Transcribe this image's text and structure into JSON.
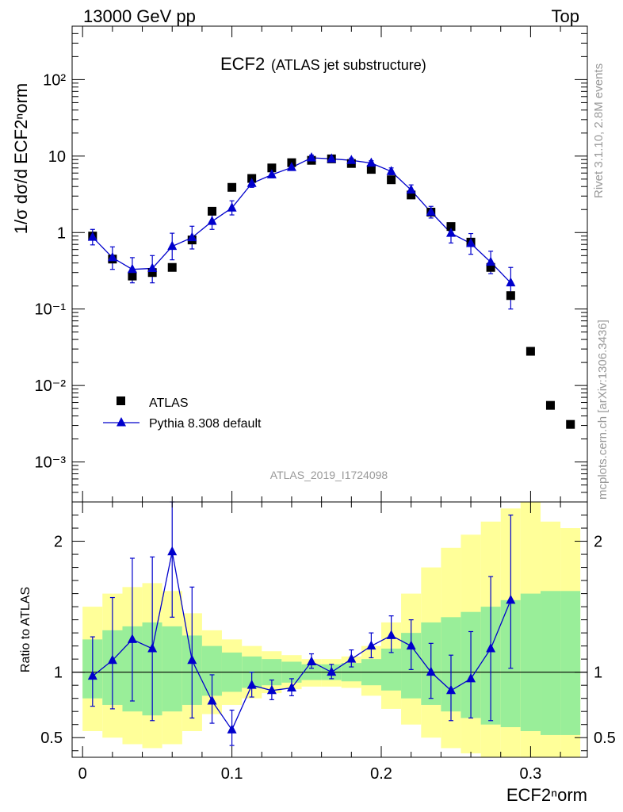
{
  "header": {
    "left": "13000 GeV pp",
    "right": "Top"
  },
  "annotations": {
    "title_main": "ECF2",
    "title_sub": "(ATLAS jet substructure)",
    "analysis_id": "ATLAS_2019_I1724098",
    "rivet": "Rivet 3.1.10,  2.8M events",
    "site": "mcplots.cern.ch [arXiv:1306.3436]"
  },
  "colors": {
    "data": "#000000",
    "mc": "#0000cc",
    "band_1sigma": "#99ee99",
    "band_2sigma": "#ffff99",
    "text_grey": "#999999"
  },
  "chart_data": [
    {
      "type": "scatter",
      "yscale": "log",
      "xlim": [
        -0.007,
        0.338
      ],
      "ylim": [
        0.0003,
        500
      ],
      "ylabel": "1/σ dσ/d ECF2ⁿorm",
      "y_ticks": [
        "10⁻³",
        "10⁻²",
        "10⁻¹",
        "1",
        "10",
        "10²"
      ],
      "legend_position": "lower-left",
      "series": [
        {
          "name": "ATLAS",
          "x": [
            0.0067,
            0.02,
            0.0333,
            0.0467,
            0.06,
            0.0733,
            0.0867,
            0.1,
            0.1133,
            0.1267,
            0.14,
            0.1533,
            0.1667,
            0.18,
            0.1933,
            0.2067,
            0.22,
            0.2333,
            0.2467,
            0.26,
            0.2733,
            0.2867,
            0.3,
            0.3133,
            0.3267
          ],
          "y": [
            0.9,
            0.45,
            0.27,
            0.3,
            0.35,
            0.8,
            1.9,
            3.9,
            5.1,
            7.0,
            8.2,
            8.8,
            9.2,
            8.0,
            6.7,
            4.9,
            3.1,
            1.85,
            1.2,
            0.75,
            0.35,
            0.15,
            0.028,
            0.0055,
            0.0031
          ]
        },
        {
          "name": "Pythia 8.308 default",
          "x": [
            0.0067,
            0.02,
            0.0333,
            0.0467,
            0.06,
            0.0733,
            0.0867,
            0.1,
            0.1133,
            0.1267,
            0.14,
            0.1533,
            0.1667,
            0.18,
            0.1933,
            0.2067,
            0.22,
            0.2333,
            0.2467,
            0.26,
            0.2733,
            0.2867
          ],
          "y": [
            0.87,
            0.47,
            0.33,
            0.34,
            0.66,
            0.86,
            1.4,
            2.1,
            4.4,
            5.7,
            7.1,
            9.5,
            9.2,
            8.8,
            8.1,
            6.3,
            3.6,
            1.85,
            0.98,
            0.72,
            0.41,
            0.22
          ],
          "yerr_low": [
            0.18,
            0.14,
            0.11,
            0.12,
            0.22,
            0.25,
            0.3,
            0.4,
            0.5,
            0.5,
            0.6,
            0.7,
            0.6,
            0.5,
            0.5,
            0.6,
            0.5,
            0.3,
            0.25,
            0.2,
            0.12,
            0.12
          ],
          "yerr_high": [
            0.23,
            0.18,
            0.14,
            0.16,
            0.32,
            0.35,
            0.4,
            0.5,
            0.6,
            0.6,
            0.7,
            0.8,
            0.7,
            0.6,
            0.6,
            0.7,
            0.6,
            0.35,
            0.3,
            0.25,
            0.16,
            0.13
          ]
        }
      ]
    },
    {
      "type": "line",
      "xlim": [
        -0.007,
        0.338
      ],
      "ylim": [
        0.35,
        2.3
      ],
      "xlabel": "ECF2ⁿorm",
      "ylabel": "Ratio to ATLAS",
      "x_ticks": [
        "0",
        "0.1",
        "0.2",
        "0.3"
      ],
      "y_ticks": [
        "0.5",
        "1",
        "2"
      ],
      "bin_edges": [
        0,
        0.0133,
        0.0267,
        0.04,
        0.0533,
        0.0667,
        0.08,
        0.0933,
        0.1067,
        0.12,
        0.1333,
        0.1467,
        0.16,
        0.1733,
        0.1867,
        0.2,
        0.2133,
        0.2267,
        0.24,
        0.2533,
        0.2667,
        0.28,
        0.2933,
        0.3067,
        0.32,
        0.3333
      ],
      "band_1sigma": {
        "low": [
          0.8,
          0.75,
          0.7,
          0.67,
          0.7,
          0.75,
          0.82,
          0.85,
          0.88,
          0.9,
          0.92,
          0.94,
          0.94,
          0.93,
          0.9,
          0.86,
          0.8,
          0.75,
          0.7,
          0.65,
          0.6,
          0.58,
          0.55,
          0.52,
          0.52
        ],
        "high": [
          1.25,
          1.32,
          1.35,
          1.38,
          1.35,
          1.28,
          1.2,
          1.15,
          1.12,
          1.1,
          1.08,
          1.06,
          1.06,
          1.07,
          1.1,
          1.18,
          1.3,
          1.38,
          1.42,
          1.46,
          1.5,
          1.55,
          1.6,
          1.62,
          1.62
        ]
      },
      "band_2sigma": {
        "low": [
          0.55,
          0.5,
          0.45,
          0.42,
          0.45,
          0.55,
          0.68,
          0.75,
          0.8,
          0.84,
          0.87,
          0.89,
          0.89,
          0.88,
          0.82,
          0.72,
          0.6,
          0.5,
          0.42,
          0.38,
          0.35,
          0.33,
          0.3,
          0.3,
          0.3
        ],
        "high": [
          1.5,
          1.6,
          1.65,
          1.68,
          1.62,
          1.45,
          1.32,
          1.25,
          1.2,
          1.16,
          1.13,
          1.1,
          1.1,
          1.12,
          1.2,
          1.38,
          1.6,
          1.8,
          1.95,
          2.05,
          2.15,
          2.25,
          2.3,
          2.15,
          2.1
        ]
      },
      "series": [
        {
          "name": "Pythia 8.308 default",
          "x": [
            0.0067,
            0.02,
            0.0333,
            0.0467,
            0.06,
            0.0733,
            0.0867,
            0.1,
            0.1133,
            0.1267,
            0.14,
            0.1533,
            0.1667,
            0.18,
            0.1933,
            0.2067,
            0.22,
            0.2333,
            0.2467,
            0.26,
            0.2733,
            0.2867
          ],
          "y": [
            0.97,
            1.09,
            1.25,
            1.18,
            1.92,
            1.09,
            0.78,
            0.56,
            0.9,
            0.86,
            0.88,
            1.08,
            1.0,
            1.1,
            1.2,
            1.28,
            1.2,
            1.0,
            0.86,
            0.95,
            1.18,
            1.55
          ],
          "yerr_low": [
            0.23,
            0.37,
            0.47,
            0.55,
            0.5,
            0.44,
            0.17,
            0.12,
            0.09,
            0.07,
            0.06,
            0.05,
            0.05,
            0.06,
            0.09,
            0.13,
            0.18,
            0.2,
            0.23,
            0.3,
            0.55,
            0.52
          ],
          "yerr_high": [
            0.3,
            0.48,
            0.62,
            0.7,
            0.5,
            0.56,
            0.2,
            0.15,
            0.1,
            0.08,
            0.07,
            0.06,
            0.06,
            0.07,
            0.1,
            0.15,
            0.2,
            0.22,
            0.27,
            0.36,
            0.55,
            0.65
          ]
        }
      ]
    }
  ]
}
